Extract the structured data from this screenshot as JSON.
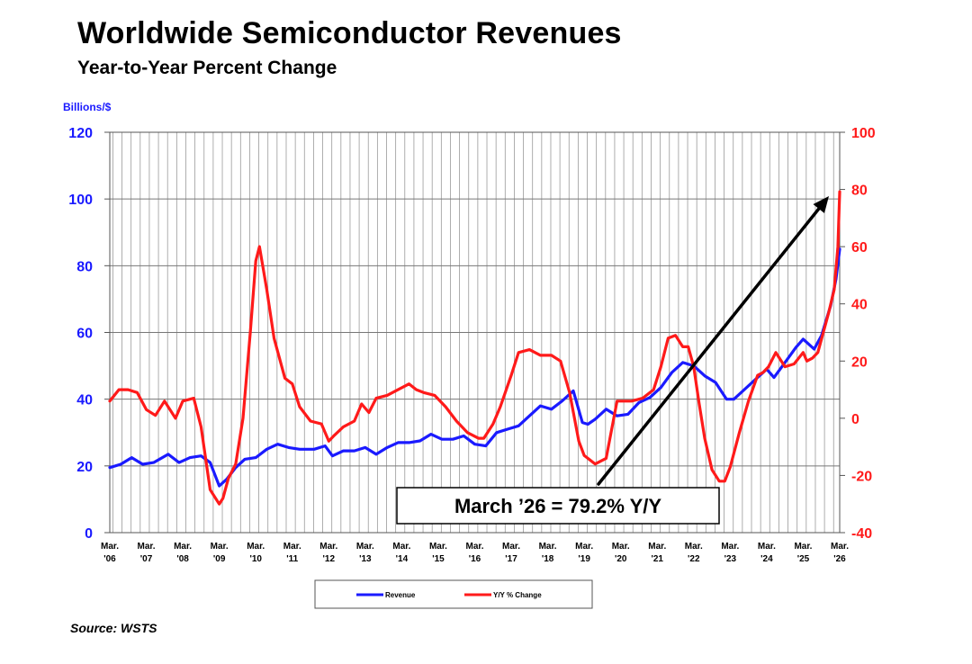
{
  "title": "Worldwide Semiconductor Revenues",
  "subtitle": "Year-to-Year Percent Change",
  "source": "Source: WSTS",
  "chart_data": {
    "type": "line",
    "ylabel_left": "Billions/$",
    "ylim_left": [
      0,
      120
    ],
    "yticks_left": [
      "120",
      "100",
      "80",
      "60",
      "40",
      "20",
      "0"
    ],
    "ylim_right": [
      -40,
      100
    ],
    "yticks_right": [
      "100",
      "80",
      "60",
      "40",
      "20",
      "0",
      "-20",
      "-40"
    ],
    "x_range": [
      2006.0,
      2026.0
    ],
    "x_tick_months": [
      "Mar.",
      "Mar.",
      "Mar.",
      "Mar.",
      "Mar.",
      "Mar.",
      "Mar.",
      "Mar.",
      "Mar.",
      "Mar.",
      "Mar.",
      "Mar.",
      "Mar.",
      "Mar.",
      "Mar.",
      "Mar.",
      "Mar.",
      "Mar.",
      "Mar.",
      "Mar.",
      "Mar."
    ],
    "x_tick_years": [
      "'06",
      "'07",
      "'08",
      "'09",
      "'10",
      "'11",
      "'12",
      "'13",
      "'14",
      "'15",
      "'16",
      "'17",
      "'18",
      "'19",
      "'20",
      "'21",
      "'22",
      "'23",
      "'24",
      "'25",
      "'26"
    ],
    "grid": "vertical",
    "legend": "bottom",
    "annotation": "March ’26 = 79.2% Y/Y",
    "series": [
      {
        "name": "Revenue",
        "axis": "left",
        "color": "#1a1aff",
        "x": [
          2006.0,
          2006.3,
          2006.6,
          2006.9,
          2007.2,
          2007.6,
          2007.9,
          2008.2,
          2008.5,
          2008.75,
          2009.0,
          2009.2,
          2009.45,
          2009.7,
          2010.0,
          2010.3,
          2010.6,
          2010.9,
          2011.2,
          2011.6,
          2011.9,
          2012.1,
          2012.4,
          2012.7,
          2013.0,
          2013.3,
          2013.6,
          2013.9,
          2014.2,
          2014.5,
          2014.8,
          2015.1,
          2015.4,
          2015.7,
          2016.0,
          2016.3,
          2016.6,
          2016.9,
          2017.2,
          2017.5,
          2017.8,
          2018.1,
          2018.4,
          2018.7,
          2018.95,
          2019.1,
          2019.3,
          2019.6,
          2019.9,
          2020.2,
          2020.5,
          2020.8,
          2021.1,
          2021.4,
          2021.7,
          2022.0,
          2022.3,
          2022.6,
          2022.9,
          2023.1,
          2023.4,
          2023.7,
          2024.0,
          2024.2,
          2024.5,
          2024.8,
          2025.0,
          2025.3,
          2025.5,
          2025.75,
          2025.9,
          2026.0
        ],
        "y": [
          19.5,
          20.5,
          22.5,
          20.5,
          21,
          23.5,
          21,
          22.5,
          23,
          21,
          14,
          16,
          19.5,
          22,
          22.5,
          25,
          26.5,
          25.5,
          25,
          25,
          26,
          23,
          24.5,
          24.5,
          25.5,
          23.5,
          25.5,
          27,
          27,
          27.5,
          29.5,
          28,
          28,
          29,
          26.5,
          26,
          30,
          31,
          32,
          35,
          38,
          37,
          39.5,
          42.5,
          33,
          32.5,
          34,
          37,
          35,
          35.5,
          39,
          40.5,
          43.5,
          48,
          51,
          50,
          47,
          45,
          40,
          40,
          43,
          46,
          49,
          46.5,
          51,
          55.5,
          58,
          55,
          59,
          68,
          76,
          85
        ]
      },
      {
        "name": "Y/Y % Change",
        "axis": "right",
        "color": "#ff1a1a",
        "x": [
          2006.0,
          2006.25,
          2006.5,
          2006.75,
          2007.0,
          2007.25,
          2007.5,
          2007.8,
          2008.0,
          2008.3,
          2008.5,
          2008.75,
          2009.0,
          2009.1,
          2009.25,
          2009.45,
          2009.65,
          2009.85,
          2010.0,
          2010.1,
          2010.3,
          2010.5,
          2010.8,
          2011.0,
          2011.2,
          2011.5,
          2011.8,
          2012.0,
          2012.15,
          2012.4,
          2012.7,
          2012.9,
          2013.1,
          2013.3,
          2013.6,
          2013.9,
          2014.2,
          2014.4,
          2014.6,
          2014.9,
          2015.2,
          2015.5,
          2015.8,
          2016.1,
          2016.25,
          2016.5,
          2016.7,
          2017.0,
          2017.2,
          2017.5,
          2017.8,
          2018.1,
          2018.35,
          2018.6,
          2018.85,
          2019.0,
          2019.3,
          2019.6,
          2019.9,
          2020.1,
          2020.3,
          2020.6,
          2020.9,
          2021.1,
          2021.3,
          2021.5,
          2021.7,
          2021.85,
          2022.0,
          2022.15,
          2022.3,
          2022.5,
          2022.7,
          2022.85,
          2023.0,
          2023.25,
          2023.5,
          2023.75,
          2023.9,
          2024.05,
          2024.25,
          2024.5,
          2024.75,
          2025.0,
          2025.1,
          2025.25,
          2025.4,
          2025.55,
          2025.7,
          2025.85,
          2025.95,
          2026.0
        ],
        "y": [
          6,
          10,
          10,
          9,
          3,
          1,
          6,
          0,
          6,
          7,
          -3,
          -25,
          -30,
          -28,
          -21,
          -16,
          0,
          30,
          55,
          60,
          45,
          28,
          14,
          12,
          4,
          -1,
          -2,
          -8,
          -6,
          -3,
          -1,
          5,
          2,
          7,
          8,
          10,
          12,
          10,
          9,
          8,
          4,
          -1,
          -5,
          -7,
          -7,
          -2,
          4,
          15,
          23,
          24,
          22,
          22,
          20,
          9,
          -8,
          -13,
          -16,
          -14,
          6,
          6,
          6,
          7,
          10,
          18,
          28,
          29,
          25,
          25,
          18,
          5,
          -7,
          -18,
          -22,
          -22,
          -17,
          -5,
          6,
          15,
          16,
          18,
          23,
          18,
          19,
          23,
          20,
          21,
          23,
          30,
          37,
          45,
          60,
          79.2
        ]
      }
    ]
  }
}
